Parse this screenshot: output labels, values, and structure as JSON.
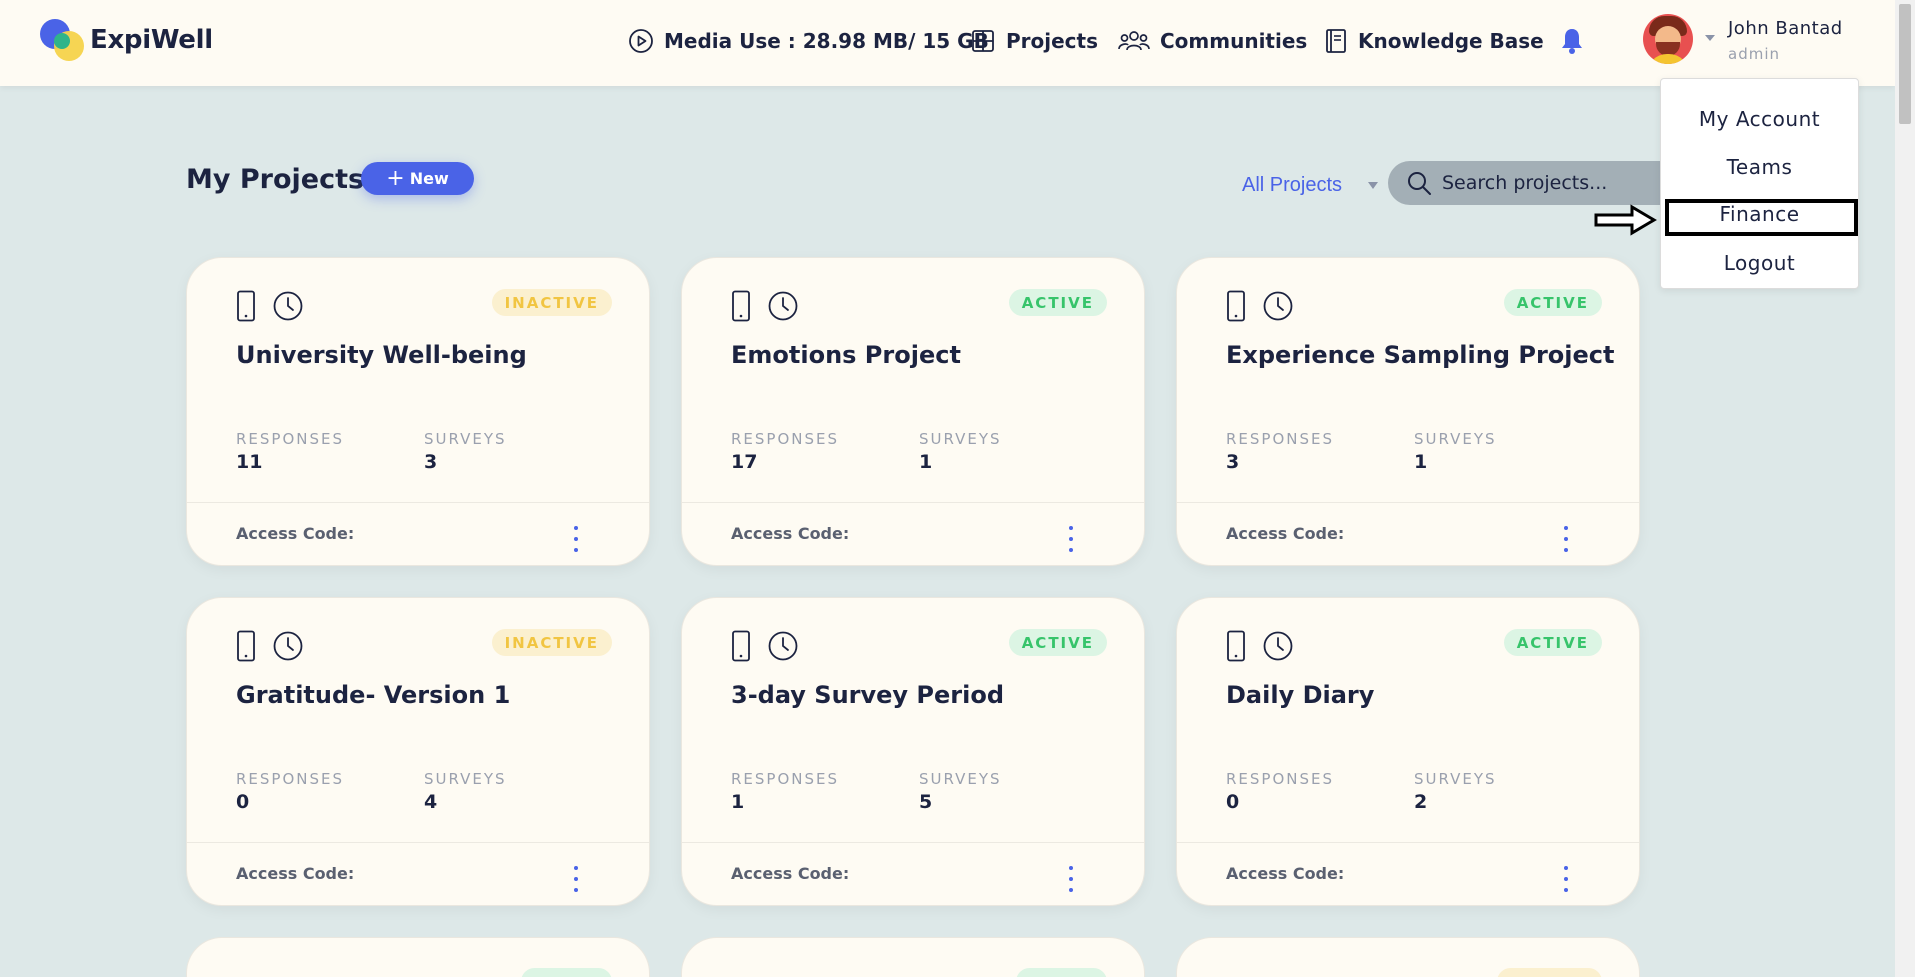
{
  "app": {
    "name": "ExpiWell"
  },
  "nav": {
    "media_use": "Media Use : 28.98 MB/ 15 GB",
    "projects": "Projects",
    "communities": "Communities",
    "knowledge_base": "Knowledge Base"
  },
  "user": {
    "name": "John Bantad",
    "role": "admin"
  },
  "user_menu": {
    "items": [
      "My Account",
      "Teams",
      "Finance",
      "Logout"
    ],
    "highlighted": "Finance"
  },
  "header": {
    "title": "My Projects",
    "new_button": "New",
    "filter": "All Projects",
    "search_placeholder": "Search projects..."
  },
  "card_labels": {
    "responses": "RESPONSES",
    "surveys": "SURVEYS",
    "access_code": "Access Code:"
  },
  "projects": [
    {
      "title": "University Well-being",
      "status": "INACTIVE",
      "responses": "11",
      "surveys": "3"
    },
    {
      "title": "Emotions Project",
      "status": "ACTIVE",
      "responses": "17",
      "surveys": "1"
    },
    {
      "title": "Experience Sampling Project",
      "status": "ACTIVE",
      "responses": "3",
      "surveys": "1"
    },
    {
      "title": "Gratitude- Version 1",
      "status": "INACTIVE",
      "responses": "0",
      "surveys": "4"
    },
    {
      "title": "3-day Survey Period",
      "status": "ACTIVE",
      "responses": "1",
      "surveys": "5"
    },
    {
      "title": "Daily Diary",
      "status": "ACTIVE",
      "responses": "0",
      "surveys": "2"
    }
  ],
  "colors": {
    "accent": "#4a63e7",
    "active_text": "#37c46b",
    "active_bg": "#dcf5e4",
    "inactive_text": "#f1c542",
    "inactive_bg": "#fbf0cf",
    "background": "#dde8e8",
    "card": "#fefbf3"
  },
  "icons": {
    "media": "play-circle-icon",
    "projects": "grid-icon",
    "communities": "users-icon",
    "knowledge_base": "book-icon",
    "notifications": "bell-icon",
    "search": "search-icon",
    "card_device": "smartphone-icon",
    "card_schedule": "clock-icon",
    "card_menu": "more-vertical-icon",
    "annotation": "arrow-right-icon"
  }
}
